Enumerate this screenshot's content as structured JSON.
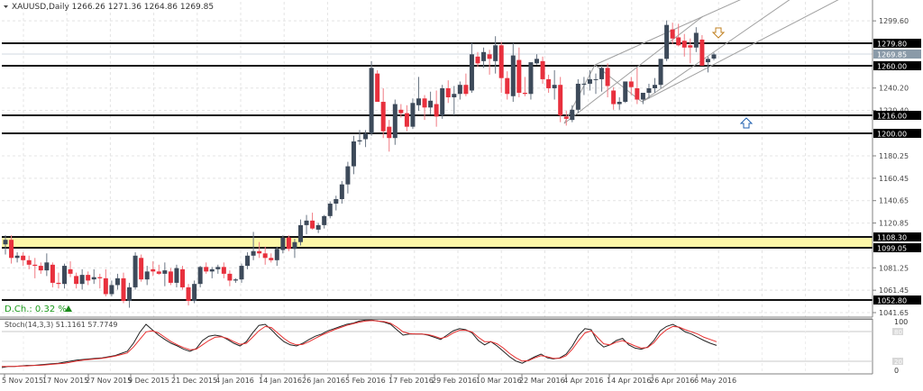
{
  "header": {
    "symbol": "XAUUSD,Daily",
    "ohlc": "1266.26 1271.36 1264.86 1269.85",
    "title_full": "XAUUSD,Daily  1266.26 1271.36 1264.86 1269.85"
  },
  "daily_change": {
    "label": "D.Ch.: 0.32 %",
    "color": "#1a9a1a"
  },
  "indicator": {
    "label": "Stoch(14,3,3) 51.1161 57.7749",
    "levels": [
      "100",
      "80",
      "20",
      "0"
    ]
  },
  "colors": {
    "bull": "#3d4a5a",
    "bear": "#e8303d",
    "zone_fill": "#fdf7a8",
    "stoch_main": "#222222",
    "stoch_signal": "#e83030"
  },
  "chart_data": {
    "type": "candlestick",
    "title": "XAUUSD,Daily",
    "xlabel": "",
    "ylabel": "",
    "ylim": [
      1041.65,
      1310.0
    ],
    "price_axis_ticks": [
      "1299.60",
      "1240.20",
      "1220.40",
      "1180.25",
      "1160.45",
      "1140.65",
      "1120.85",
      "1081.25",
      "1061.45",
      "1041.65"
    ],
    "date_labels": [
      "5 Nov 2015",
      "17 Nov 2015",
      "27 Nov 2015",
      "9 Dec 2015",
      "21 Dec 2015",
      "4 Jan 2016",
      "14 Jan 2016",
      "26 Jan 2016",
      "5 Feb 2016",
      "17 Feb 2016",
      "29 Feb 2016",
      "10 Mar 2016",
      "22 Mar 2016",
      "4 Apr 2016",
      "14 Apr 2016",
      "26 Apr 2016",
      "6 May 2016"
    ],
    "horizontal_levels": [
      {
        "price": "1279.80"
      },
      {
        "price": "1260.00"
      },
      {
        "price": "1216.00"
      },
      {
        "price": "1200.00"
      },
      {
        "price": "1108.30"
      },
      {
        "price": "1099.05"
      },
      {
        "price": "1052.80"
      }
    ],
    "current_price": "1269.85",
    "support_zone": [
      "1099.05",
      "1108.30"
    ],
    "last_ohlc": {
      "open": 1266.26,
      "high": 1271.36,
      "low": 1264.86,
      "close": 1269.85
    },
    "candles": [
      [
        1102,
        1110,
        1093,
        1106
      ],
      [
        1106,
        1110,
        1085,
        1090
      ],
      [
        1090,
        1095,
        1086,
        1092
      ],
      [
        1092,
        1095,
        1083,
        1088
      ],
      [
        1088,
        1092,
        1080,
        1084
      ],
      [
        1084,
        1090,
        1072,
        1083
      ],
      [
        1083,
        1086,
        1076,
        1079
      ],
      [
        1079,
        1094,
        1074,
        1086
      ],
      [
        1084,
        1086,
        1064,
        1068
      ],
      [
        1068,
        1077,
        1063,
        1067
      ],
      [
        1067,
        1085,
        1063,
        1083
      ],
      [
        1080,
        1087,
        1073,
        1076
      ],
      [
        1074,
        1077,
        1063,
        1067
      ],
      [
        1067,
        1080,
        1062,
        1075
      ],
      [
        1075,
        1078,
        1066,
        1070
      ],
      [
        1071,
        1080,
        1067,
        1073
      ],
      [
        1073,
        1076,
        1063,
        1072
      ],
      [
        1072,
        1080,
        1056,
        1058
      ],
      [
        1058,
        1070,
        1056,
        1066
      ],
      [
        1066,
        1076,
        1062,
        1072
      ],
      [
        1072,
        1077,
        1050,
        1052
      ],
      [
        1052,
        1068,
        1046,
        1064
      ],
      [
        1064,
        1095,
        1062,
        1092
      ],
      [
        1090,
        1093,
        1069,
        1071
      ],
      [
        1071,
        1083,
        1066,
        1078
      ],
      [
        1080,
        1087,
        1074,
        1078
      ],
      [
        1078,
        1084,
        1075,
        1076
      ],
      [
        1076,
        1086,
        1065,
        1079
      ],
      [
        1078,
        1081,
        1066,
        1068
      ],
      [
        1068,
        1084,
        1064,
        1081
      ],
      [
        1080,
        1083,
        1062,
        1064
      ],
      [
        1064,
        1067,
        1048,
        1052
      ],
      [
        1052,
        1070,
        1050,
        1067
      ],
      [
        1067,
        1083,
        1064,
        1082
      ],
      [
        1082,
        1086,
        1076,
        1078
      ],
      [
        1078,
        1082,
        1072,
        1080
      ],
      [
        1080,
        1084,
        1076,
        1082
      ],
      [
        1082,
        1086,
        1072,
        1076
      ],
      [
        1076,
        1079,
        1065,
        1070
      ],
      [
        1070,
        1072,
        1068,
        1071
      ],
      [
        1071,
        1085,
        1068,
        1083
      ],
      [
        1083,
        1095,
        1080,
        1092
      ],
      [
        1092,
        1113,
        1088,
        1096
      ],
      [
        1096,
        1104,
        1090,
        1094
      ],
      [
        1094,
        1100,
        1084,
        1090
      ],
      [
        1090,
        1094,
        1086,
        1088
      ],
      [
        1088,
        1100,
        1083,
        1098
      ],
      [
        1097,
        1110,
        1094,
        1108
      ],
      [
        1108,
        1110,
        1096,
        1098
      ],
      [
        1098,
        1107,
        1090,
        1104
      ],
      [
        1104,
        1124,
        1101,
        1119
      ],
      [
        1119,
        1128,
        1111,
        1123
      ],
      [
        1123,
        1130,
        1115,
        1116
      ],
      [
        1115,
        1121,
        1112,
        1119
      ],
      [
        1119,
        1128,
        1116,
        1127
      ],
      [
        1127,
        1140,
        1125,
        1138
      ],
      [
        1138,
        1145,
        1132,
        1142
      ],
      [
        1142,
        1158,
        1138,
        1155
      ],
      [
        1155,
        1175,
        1147,
        1171
      ],
      [
        1171,
        1198,
        1164,
        1193
      ],
      [
        1193,
        1203,
        1190,
        1194
      ],
      [
        1195,
        1203,
        1188,
        1200
      ],
      [
        1200,
        1264,
        1198,
        1258
      ],
      [
        1253,
        1256,
        1230,
        1228
      ],
      [
        1228,
        1240,
        1196,
        1202
      ],
      [
        1206,
        1212,
        1184,
        1196
      ],
      [
        1196,
        1230,
        1190,
        1226
      ],
      [
        1221,
        1226,
        1214,
        1218
      ],
      [
        1218,
        1225,
        1202,
        1206
      ],
      [
        1206,
        1231,
        1204,
        1227
      ],
      [
        1225,
        1250,
        1220,
        1231
      ],
      [
        1231,
        1234,
        1212,
        1223
      ],
      [
        1223,
        1237,
        1217,
        1229
      ],
      [
        1226,
        1238,
        1206,
        1215
      ],
      [
        1216,
        1243,
        1213,
        1240
      ],
      [
        1240,
        1247,
        1227,
        1232
      ],
      [
        1232,
        1242,
        1216,
        1235
      ],
      [
        1235,
        1246,
        1230,
        1243
      ],
      [
        1243,
        1253,
        1233,
        1235
      ],
      [
        1238,
        1280,
        1236,
        1270
      ],
      [
        1268,
        1272,
        1259,
        1262
      ],
      [
        1264,
        1276,
        1258,
        1272
      ],
      [
        1270,
        1274,
        1252,
        1266
      ],
      [
        1264,
        1286,
        1253,
        1278
      ],
      [
        1278,
        1281,
        1236,
        1249
      ],
      [
        1249,
        1255,
        1230,
        1235
      ],
      [
        1233,
        1280,
        1228,
        1269
      ],
      [
        1265,
        1276,
        1232,
        1236
      ],
      [
        1236,
        1250,
        1233,
        1235
      ],
      [
        1235,
        1253,
        1230,
        1263
      ],
      [
        1262,
        1270,
        1261,
        1266
      ],
      [
        1264,
        1268,
        1244,
        1248
      ],
      [
        1248,
        1252,
        1236,
        1240
      ],
      [
        1240,
        1256,
        1230,
        1243
      ],
      [
        1243,
        1250,
        1210,
        1216
      ],
      [
        1215,
        1220,
        1207,
        1213
      ],
      [
        1212,
        1225,
        1210,
        1221
      ],
      [
        1221,
        1248,
        1218,
        1244
      ],
      [
        1244,
        1250,
        1234,
        1244
      ],
      [
        1244,
        1256,
        1238,
        1248
      ],
      [
        1248,
        1253,
        1235,
        1248
      ],
      [
        1248,
        1260,
        1237,
        1258
      ],
      [
        1258,
        1262,
        1232,
        1242
      ],
      [
        1238,
        1241,
        1221,
        1226
      ],
      [
        1226,
        1232,
        1221,
        1228
      ],
      [
        1228,
        1245,
        1227,
        1246
      ],
      [
        1246,
        1250,
        1234,
        1241
      ],
      [
        1240,
        1258,
        1226,
        1230
      ],
      [
        1230,
        1236,
        1226,
        1236
      ],
      [
        1236,
        1244,
        1231,
        1240
      ],
      [
        1240,
        1249,
        1236,
        1243
      ],
      [
        1243,
        1262,
        1240,
        1266
      ],
      [
        1266,
        1300,
        1264,
        1296
      ],
      [
        1292,
        1298,
        1279,
        1284
      ],
      [
        1285,
        1297,
        1277,
        1278
      ],
      [
        1282,
        1288,
        1268,
        1276
      ],
      [
        1278,
        1284,
        1262,
        1276
      ],
      [
        1276,
        1294,
        1272,
        1289
      ],
      [
        1283,
        1287,
        1262,
        1260
      ],
      [
        1263,
        1268,
        1254,
        1266
      ],
      [
        1266.26,
        1271.36,
        1264.86,
        1269.85
      ]
    ]
  }
}
